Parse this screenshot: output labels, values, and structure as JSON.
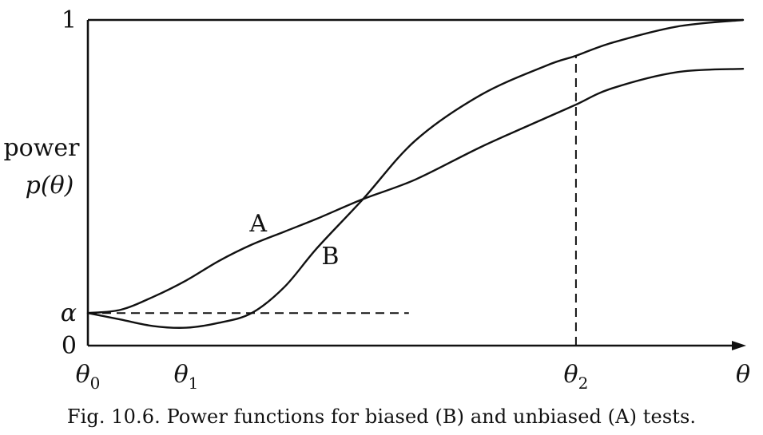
{
  "chart_data": {
    "type": "line",
    "title": "",
    "xlabel": "θ",
    "ylabel": [
      "power",
      "p(θ)"
    ],
    "xlim": [
      0,
      1
    ],
    "ylim": [
      0,
      1
    ],
    "y_ticks": [
      {
        "value": 0,
        "label": "0"
      },
      {
        "value": 0.1,
        "label": "α"
      },
      {
        "value": 1,
        "label": "1"
      }
    ],
    "x_ticks": [
      {
        "value": 0,
        "label": "θ",
        "sub": "0"
      },
      {
        "value": 0.15,
        "label": "θ",
        "sub": "1"
      },
      {
        "value": 0.745,
        "label": "θ",
        "sub": "2"
      },
      {
        "value": 1.0,
        "label": "θ",
        "sub": ""
      }
    ],
    "series": [
      {
        "name": "A",
        "x": [
          0.0,
          0.05,
          0.1,
          0.15,
          0.2,
          0.25,
          0.3,
          0.35,
          0.42,
          0.5,
          0.6,
          0.7,
          0.745,
          0.8,
          0.9,
          1.0
        ],
        "y": [
          0.1,
          0.11,
          0.15,
          0.2,
          0.26,
          0.31,
          0.35,
          0.39,
          0.45,
          0.51,
          0.61,
          0.7,
          0.74,
          0.79,
          0.84,
          0.85
        ]
      },
      {
        "name": "B",
        "x": [
          0.0,
          0.05,
          0.1,
          0.15,
          0.2,
          0.25,
          0.3,
          0.35,
          0.42,
          0.5,
          0.6,
          0.7,
          0.745,
          0.8,
          0.9,
          1.0
        ],
        "y": [
          0.1,
          0.08,
          0.06,
          0.055,
          0.07,
          0.1,
          0.18,
          0.3,
          0.45,
          0.63,
          0.77,
          0.86,
          0.89,
          0.93,
          0.98,
          1.0
        ]
      }
    ],
    "reference_lines": [
      {
        "type": "horizontal",
        "y": 0.1,
        "x_from": 0.0,
        "x_to": 0.49,
        "style": "dashed"
      },
      {
        "type": "vertical",
        "x": 0.745,
        "y_from": 0.0,
        "y_to": 0.89,
        "style": "dashed"
      }
    ],
    "curve_labels": [
      {
        "series": "A",
        "text": "A",
        "x": 0.26,
        "y": 0.35
      },
      {
        "series": "B",
        "text": "B",
        "x": 0.37,
        "y": 0.25
      }
    ],
    "grid": false,
    "legend": "none"
  },
  "caption": "Fig. 10.6. Power functions for biased (B) and unbiased (A) tests."
}
